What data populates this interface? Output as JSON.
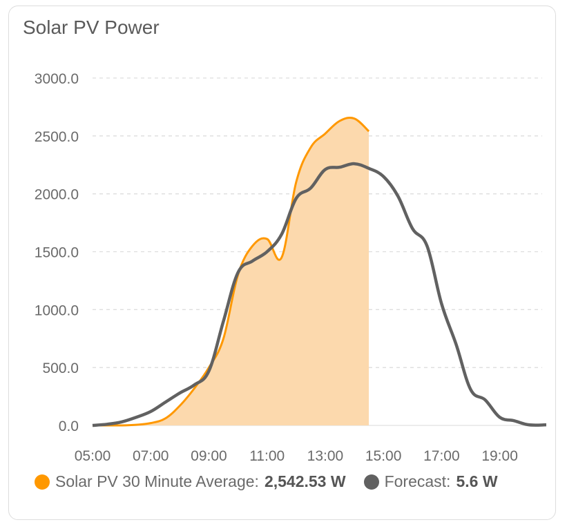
{
  "card": {
    "title": "Solar PV Power"
  },
  "colors": {
    "solar": "#ff9800",
    "solar_fill": "#fcd9ad",
    "forecast": "#616161",
    "grid": "#dddddd",
    "axis_text": "#6a6a6a"
  },
  "legend": [
    {
      "label": "Solar PV 30 Minute Average:",
      "value": "2,542.53 W",
      "color": "#ff9800"
    },
    {
      "label": "Forecast:",
      "value": "5.6 W",
      "color": "#616161"
    }
  ],
  "chart_data": {
    "type": "area",
    "x_ticks": [
      "05:00",
      "07:00",
      "09:00",
      "11:00",
      "13:00",
      "15:00",
      "17:00",
      "19:00"
    ],
    "y_ticks": [
      "0.0",
      "500.0",
      "1000.0",
      "1500.0",
      "2000.0",
      "2500.0",
      "3000.0"
    ],
    "ylim": [
      0,
      3000
    ],
    "xlim_hours": [
      5,
      20.6
    ],
    "grid": true,
    "legend_position": "bottom",
    "series": [
      {
        "name": "Solar PV 30 Minute Average",
        "style": "area",
        "points": [
          [
            5.0,
            0
          ],
          [
            6.0,
            0
          ],
          [
            6.5,
            5
          ],
          [
            7.0,
            20
          ],
          [
            7.5,
            60
          ],
          [
            8.0,
            170
          ],
          [
            8.5,
            320
          ],
          [
            9.0,
            500
          ],
          [
            9.5,
            750
          ],
          [
            10.0,
            1300
          ],
          [
            10.5,
            1550
          ],
          [
            11.0,
            1610
          ],
          [
            11.5,
            1450
          ],
          [
            12.0,
            2100
          ],
          [
            12.5,
            2400
          ],
          [
            13.0,
            2520
          ],
          [
            13.5,
            2630
          ],
          [
            14.0,
            2650
          ],
          [
            14.5,
            2540
          ]
        ]
      },
      {
        "name": "Forecast",
        "style": "line",
        "points": [
          [
            5.0,
            0
          ],
          [
            5.5,
            10
          ],
          [
            6.0,
            30
          ],
          [
            6.5,
            70
          ],
          [
            7.0,
            120
          ],
          [
            7.5,
            200
          ],
          [
            8.0,
            280
          ],
          [
            8.5,
            350
          ],
          [
            9.0,
            470
          ],
          [
            9.5,
            900
          ],
          [
            10.0,
            1320
          ],
          [
            10.5,
            1420
          ],
          [
            11.0,
            1500
          ],
          [
            11.5,
            1650
          ],
          [
            12.0,
            1960
          ],
          [
            12.5,
            2050
          ],
          [
            13.0,
            2210
          ],
          [
            13.5,
            2230
          ],
          [
            14.0,
            2260
          ],
          [
            14.5,
            2220
          ],
          [
            15.0,
            2150
          ],
          [
            15.5,
            1980
          ],
          [
            16.0,
            1700
          ],
          [
            16.5,
            1550
          ],
          [
            17.0,
            1050
          ],
          [
            17.5,
            700
          ],
          [
            18.0,
            310
          ],
          [
            18.5,
            220
          ],
          [
            19.0,
            70
          ],
          [
            19.5,
            40
          ],
          [
            20.0,
            5
          ],
          [
            20.6,
            5
          ]
        ]
      }
    ]
  }
}
